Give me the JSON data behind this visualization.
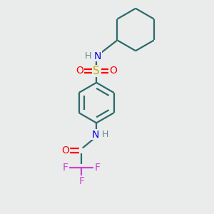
{
  "bg_color": "#eaecec",
  "bond_color": "#2d6b6b",
  "atom_colors": {
    "N": "#0000ee",
    "O": "#ff0000",
    "S": "#ccaa00",
    "F": "#cc44cc",
    "H": "#5a8a8a",
    "C": "#2d6b6b"
  },
  "line_width": 1.6,
  "figsize": [
    3.0,
    3.0
  ],
  "dpi": 100
}
